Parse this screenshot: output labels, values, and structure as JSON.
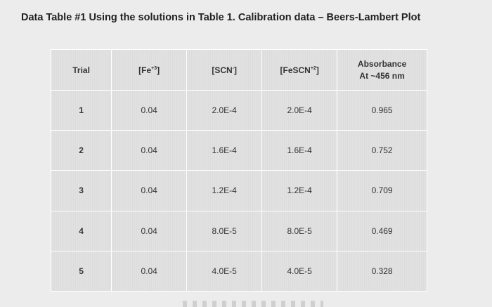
{
  "heading": {
    "label": "Data Table #1 Using the solutions in Table 1.",
    "bold_part": "Calibration data – Beers-Lambert Plot"
  },
  "table": {
    "headers": {
      "trial": "Trial",
      "fe_base": "[Fe",
      "fe_sup": "+3",
      "fe_close": "]",
      "scn_base": "[SCN",
      "scn_sup": "-",
      "scn_close": "]",
      "fescn_base": "[FeSCN",
      "fescn_sup": "+2",
      "fescn_close": "]",
      "abs_line1": "Absorbance",
      "abs_line2": "At ~456 nm"
    },
    "rows": [
      {
        "trial": "1",
        "fe": "0.04",
        "scn": "2.0E-4",
        "fescn": "2.0E-4",
        "absorbance": "0.965"
      },
      {
        "trial": "2",
        "fe": "0.04",
        "scn": "1.6E-4",
        "fescn": "1.6E-4",
        "absorbance": "0.752"
      },
      {
        "trial": "3",
        "fe": "0.04",
        "scn": "1.2E-4",
        "fescn": "1.2E-4",
        "absorbance": "0.709"
      },
      {
        "trial": "4",
        "fe": "0.04",
        "scn": "8.0E-5",
        "fescn": "8.0E-5",
        "absorbance": "0.469"
      },
      {
        "trial": "5",
        "fe": "0.04",
        "scn": "4.0E-5",
        "fescn": "4.0E-5",
        "absorbance": "0.328"
      }
    ]
  }
}
